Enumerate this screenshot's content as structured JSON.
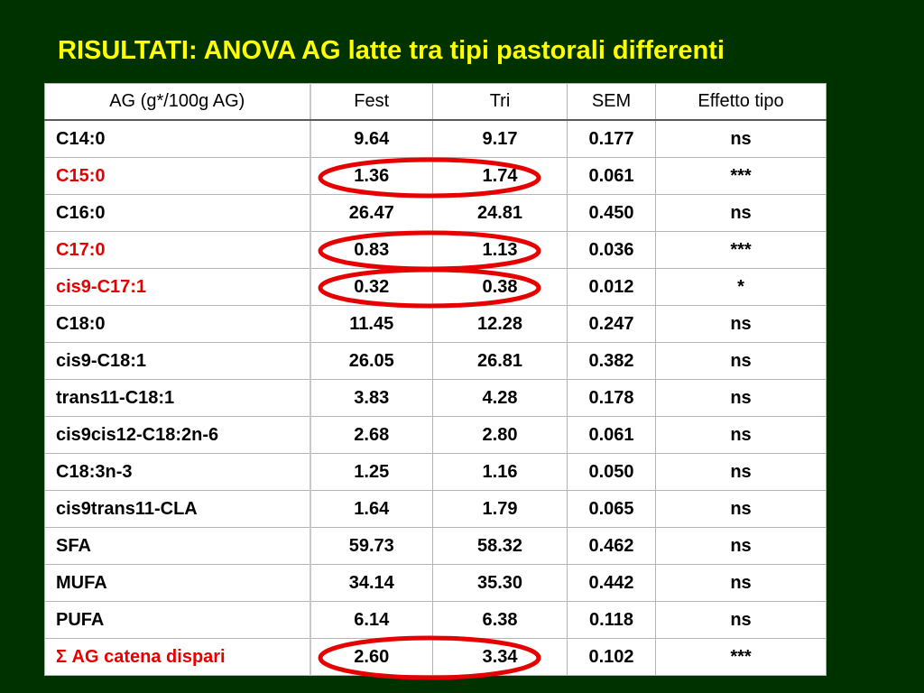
{
  "title": "RISULTATI: ANOVA AG latte tra tipi pastorali differenti",
  "table": {
    "headers": [
      "AG (g*/100g AG)",
      "Fest",
      "Tri",
      "SEM",
      "Effetto tipo"
    ],
    "rows": [
      {
        "label": "C14:0",
        "fest": "9.64",
        "tri": "9.17",
        "sem": "0.177",
        "effect": "ns",
        "highlight": false
      },
      {
        "label": "C15:0",
        "fest": "1.36",
        "tri": "1.74",
        "sem": "0.061",
        "effect": "***",
        "highlight": true
      },
      {
        "label": "C16:0",
        "fest": "26.47",
        "tri": "24.81",
        "sem": "0.450",
        "effect": "ns",
        "highlight": false
      },
      {
        "label": "C17:0",
        "fest": "0.83",
        "tri": "1.13",
        "sem": "0.036",
        "effect": "***",
        "highlight": true
      },
      {
        "label": "cis9-C17:1",
        "fest": "0.32",
        "tri": "0.38",
        "sem": "0.012",
        "effect": "*",
        "highlight": true
      },
      {
        "label": "C18:0",
        "fest": "11.45",
        "tri": "12.28",
        "sem": "0.247",
        "effect": "ns",
        "highlight": false
      },
      {
        "label": "cis9-C18:1",
        "fest": "26.05",
        "tri": "26.81",
        "sem": "0.382",
        "effect": "ns",
        "highlight": false
      },
      {
        "label": "trans11-C18:1",
        "fest": "3.83",
        "tri": "4.28",
        "sem": "0.178",
        "effect": "ns",
        "highlight": false
      },
      {
        "label": "cis9cis12-C18:2n-6",
        "fest": "2.68",
        "tri": "2.80",
        "sem": "0.061",
        "effect": "ns",
        "highlight": false
      },
      {
        "label": "C18:3n-3",
        "fest": "1.25",
        "tri": "1.16",
        "sem": "0.050",
        "effect": "ns",
        "highlight": false
      },
      {
        "label": "cis9trans11-CLA",
        "fest": "1.64",
        "tri": "1.79",
        "sem": "0.065",
        "effect": "ns",
        "highlight": false
      },
      {
        "label": "SFA",
        "fest": "59.73",
        "tri": "58.32",
        "sem": "0.462",
        "effect": "ns",
        "highlight": false
      },
      {
        "label": "MUFA",
        "fest": "34.14",
        "tri": "35.30",
        "sem": "0.442",
        "effect": "ns",
        "highlight": false
      },
      {
        "label": "PUFA",
        "fest": "6.14",
        "tri": "6.38",
        "sem": "0.118",
        "effect": "ns",
        "highlight": false
      },
      {
        "label": "Σ AG catena dispari",
        "fest": "2.60",
        "tri": "3.34",
        "sem": "0.102",
        "effect": "***",
        "highlight": true
      }
    ]
  },
  "colors": {
    "background": "#003200",
    "title": "#FFFF00",
    "highlight_text": "#E60000",
    "circle_stroke": "#E60000"
  }
}
